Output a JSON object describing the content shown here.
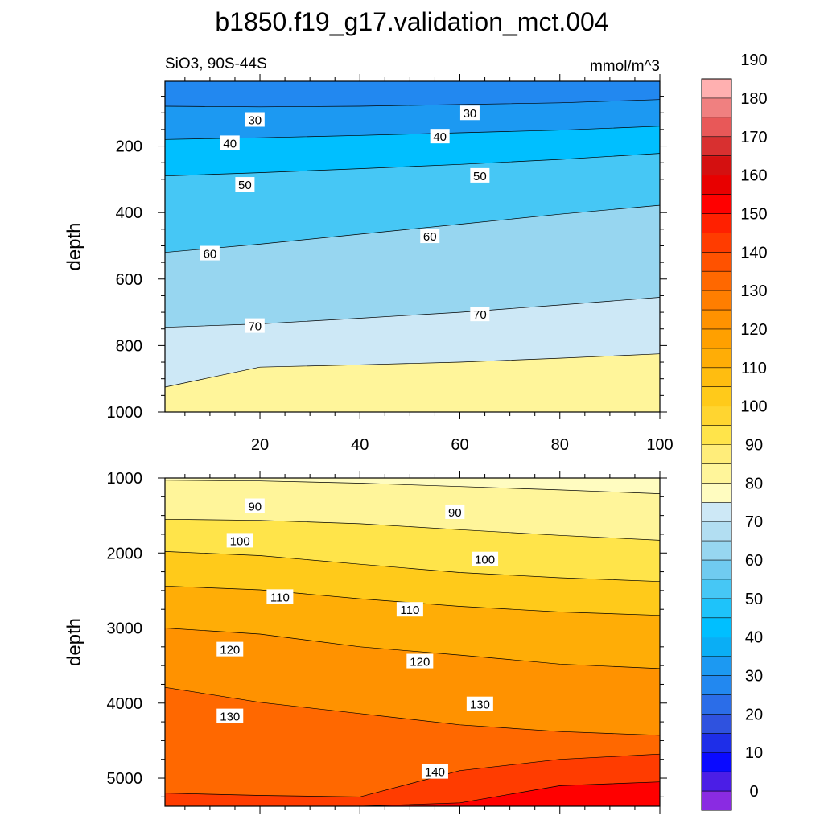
{
  "title": "b1850.f19_g17.validation_mct.004",
  "chart_data": [
    {
      "type": "contour",
      "panel": "upper",
      "left_label": "SiO3, 90S-44S",
      "right_label": "mmol/m^3",
      "ylabel": "depth",
      "xlim": [
        1,
        100
      ],
      "ylim": [
        1000,
        5
      ],
      "y_reversed": true,
      "xticks": [
        20,
        40,
        60,
        80,
        100
      ],
      "yticks": [
        200,
        400,
        600,
        800,
        1000
      ],
      "contour_depths": [
        {
          "level": 30,
          "y": [
            80,
            82,
            80,
            75,
            70,
            60
          ]
        },
        {
          "level": 40,
          "y": [
            180,
            175,
            168,
            160,
            152,
            140
          ]
        },
        {
          "level": 50,
          "y": [
            290,
            280,
            268,
            255,
            240,
            222
          ]
        },
        {
          "level": 60,
          "y": [
            520,
            495,
            465,
            435,
            405,
            378
          ]
        },
        {
          "level": 70,
          "y": [
            745,
            735,
            718,
            700,
            678,
            655
          ]
        },
        {
          "level": 80,
          "y": [
            925,
            865,
            858,
            850,
            838,
            825
          ]
        }
      ],
      "contour_x": [
        1,
        20,
        40,
        60,
        80,
        100
      ],
      "line_labels": [
        {
          "text": "30",
          "x": 19,
          "y": 120
        },
        {
          "text": "30",
          "x": 62,
          "y": 100
        },
        {
          "text": "40",
          "x": 14,
          "y": 190
        },
        {
          "text": "40",
          "x": 56,
          "y": 170
        },
        {
          "text": "50",
          "x": 17,
          "y": 315
        },
        {
          "text": "50",
          "x": 64,
          "y": 288
        },
        {
          "text": "60",
          "x": 10,
          "y": 522
        },
        {
          "text": "60",
          "x": 54,
          "y": 470
        },
        {
          "text": "70",
          "x": 19,
          "y": 740
        },
        {
          "text": "70",
          "x": 64,
          "y": 705
        }
      ]
    },
    {
      "type": "contour",
      "panel": "lower",
      "ylabel": "depth",
      "xlim": [
        1,
        100
      ],
      "ylim": [
        5375,
        1000
      ],
      "y_reversed": true,
      "xticks": [
        20,
        40,
        60,
        80,
        100
      ],
      "yticks": [
        1000,
        2000,
        3000,
        4000,
        5000
      ],
      "contour_depths": [
        {
          "level": 80,
          "y": [
            1030,
            1040,
            1070,
            1115,
            1160,
            1210
          ]
        },
        {
          "level": 90,
          "y": [
            1550,
            1565,
            1610,
            1690,
            1765,
            1830
          ]
        },
        {
          "level": 100,
          "y": [
            1980,
            2035,
            2150,
            2260,
            2330,
            2380
          ]
        },
        {
          "level": 110,
          "y": [
            2440,
            2490,
            2610,
            2710,
            2785,
            2830
          ]
        },
        {
          "level": 120,
          "y": [
            3000,
            3080,
            3250,
            3360,
            3480,
            3540
          ]
        },
        {
          "level": 130,
          "y": [
            3790,
            3990,
            4140,
            4290,
            4380,
            4430
          ]
        },
        {
          "level": 140,
          "y": [
            5200,
            5230,
            5250,
            4900,
            4750,
            4680
          ]
        },
        {
          "level": 150,
          "y": [
            5375,
            5375,
            5375,
            5330,
            5100,
            5050
          ]
        }
      ],
      "contour_x": [
        1,
        20,
        40,
        60,
        80,
        100
      ],
      "line_labels": [
        {
          "text": "90",
          "x": 19,
          "y": 1370
        },
        {
          "text": "90",
          "x": 59,
          "y": 1450
        },
        {
          "text": "100",
          "x": 16,
          "y": 1830
        },
        {
          "text": "100",
          "x": 65,
          "y": 2080
        },
        {
          "text": "110",
          "x": 24,
          "y": 2580
        },
        {
          "text": "110",
          "x": 50,
          "y": 2750
        },
        {
          "text": "120",
          "x": 14,
          "y": 3280
        },
        {
          "text": "120",
          "x": 52,
          "y": 3440
        },
        {
          "text": "130",
          "x": 14,
          "y": 4170
        },
        {
          "text": "130",
          "x": 64,
          "y": 4010
        },
        {
          "text": "140",
          "x": 55,
          "y": 4910
        }
      ]
    }
  ],
  "colorbar": {
    "labels": [
      "0",
      "10",
      "20",
      "30",
      "40",
      "50",
      "60",
      "70",
      "80",
      "90",
      "100",
      "110",
      "120",
      "130",
      "140",
      "150",
      "160",
      "170",
      "180",
      "190"
    ],
    "colors": [
      "#8a2be2",
      "#4b1ee6",
      "#0a0aff",
      "#1e2ee8",
      "#2f52df",
      "#2b6de8",
      "#2288f0",
      "#1c99f2",
      "#0aaef5",
      "#00bfff",
      "#1ec3fa",
      "#46c7f5",
      "#70cbf0",
      "#97d6f0",
      "#b2def2",
      "#cde8f6",
      "#fffcc0",
      "#fff59a",
      "#ffed7a",
      "#ffe44a",
      "#ffd530",
      "#ffca1a",
      "#ffbd10",
      "#ffad06",
      "#ffa000",
      "#ff9200",
      "#ff7e00",
      "#ff6800",
      "#ff5200",
      "#ff3c00",
      "#ff2000",
      "#ff0000",
      "#e80000",
      "#d41010",
      "#d83030",
      "#e85858",
      "#f08080",
      "#ffb0b0"
    ]
  }
}
